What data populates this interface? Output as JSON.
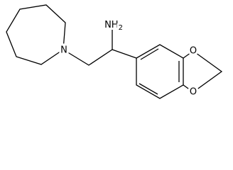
{
  "atoms": {
    "amine": {
      "label": "NH",
      "subscript": "2"
    },
    "ring_nitrogen": "N",
    "oxygen_top": "O",
    "oxygen_bottom": "O"
  }
}
